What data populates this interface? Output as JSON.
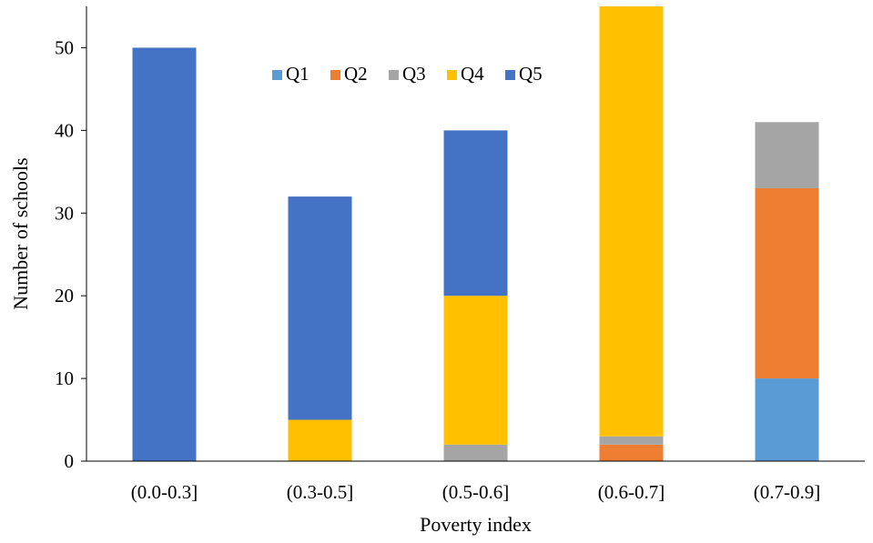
{
  "chart_data": {
    "type": "bar",
    "stacked": true,
    "title": "",
    "xlabel": "Poverty index",
    "ylabel": "Number of schools",
    "categories": [
      "(0.0-0.3]",
      "(0.3-0.5]",
      "(0.5-0.6]",
      "(0.6-0.7]",
      "(0.7-0.9]"
    ],
    "ylim": [
      0,
      55
    ],
    "yticks": [
      0,
      10,
      20,
      30,
      40,
      50
    ],
    "grid": false,
    "legend_position": "top-center",
    "series": [
      {
        "name": "Q1",
        "color": "#5B9BD5",
        "values": [
          0,
          0,
          0,
          0,
          10
        ]
      },
      {
        "name": "Q2",
        "color": "#ED7D31",
        "values": [
          0,
          0,
          0,
          2,
          23
        ]
      },
      {
        "name": "Q3",
        "color": "#A5A5A5",
        "values": [
          0,
          0,
          2,
          1,
          8
        ]
      },
      {
        "name": "Q4",
        "color": "#FFC000",
        "values": [
          0,
          5,
          18,
          52,
          0
        ]
      },
      {
        "name": "Q5",
        "color": "#4472C4",
        "values": [
          50,
          27,
          20,
          0,
          0
        ]
      }
    ]
  }
}
